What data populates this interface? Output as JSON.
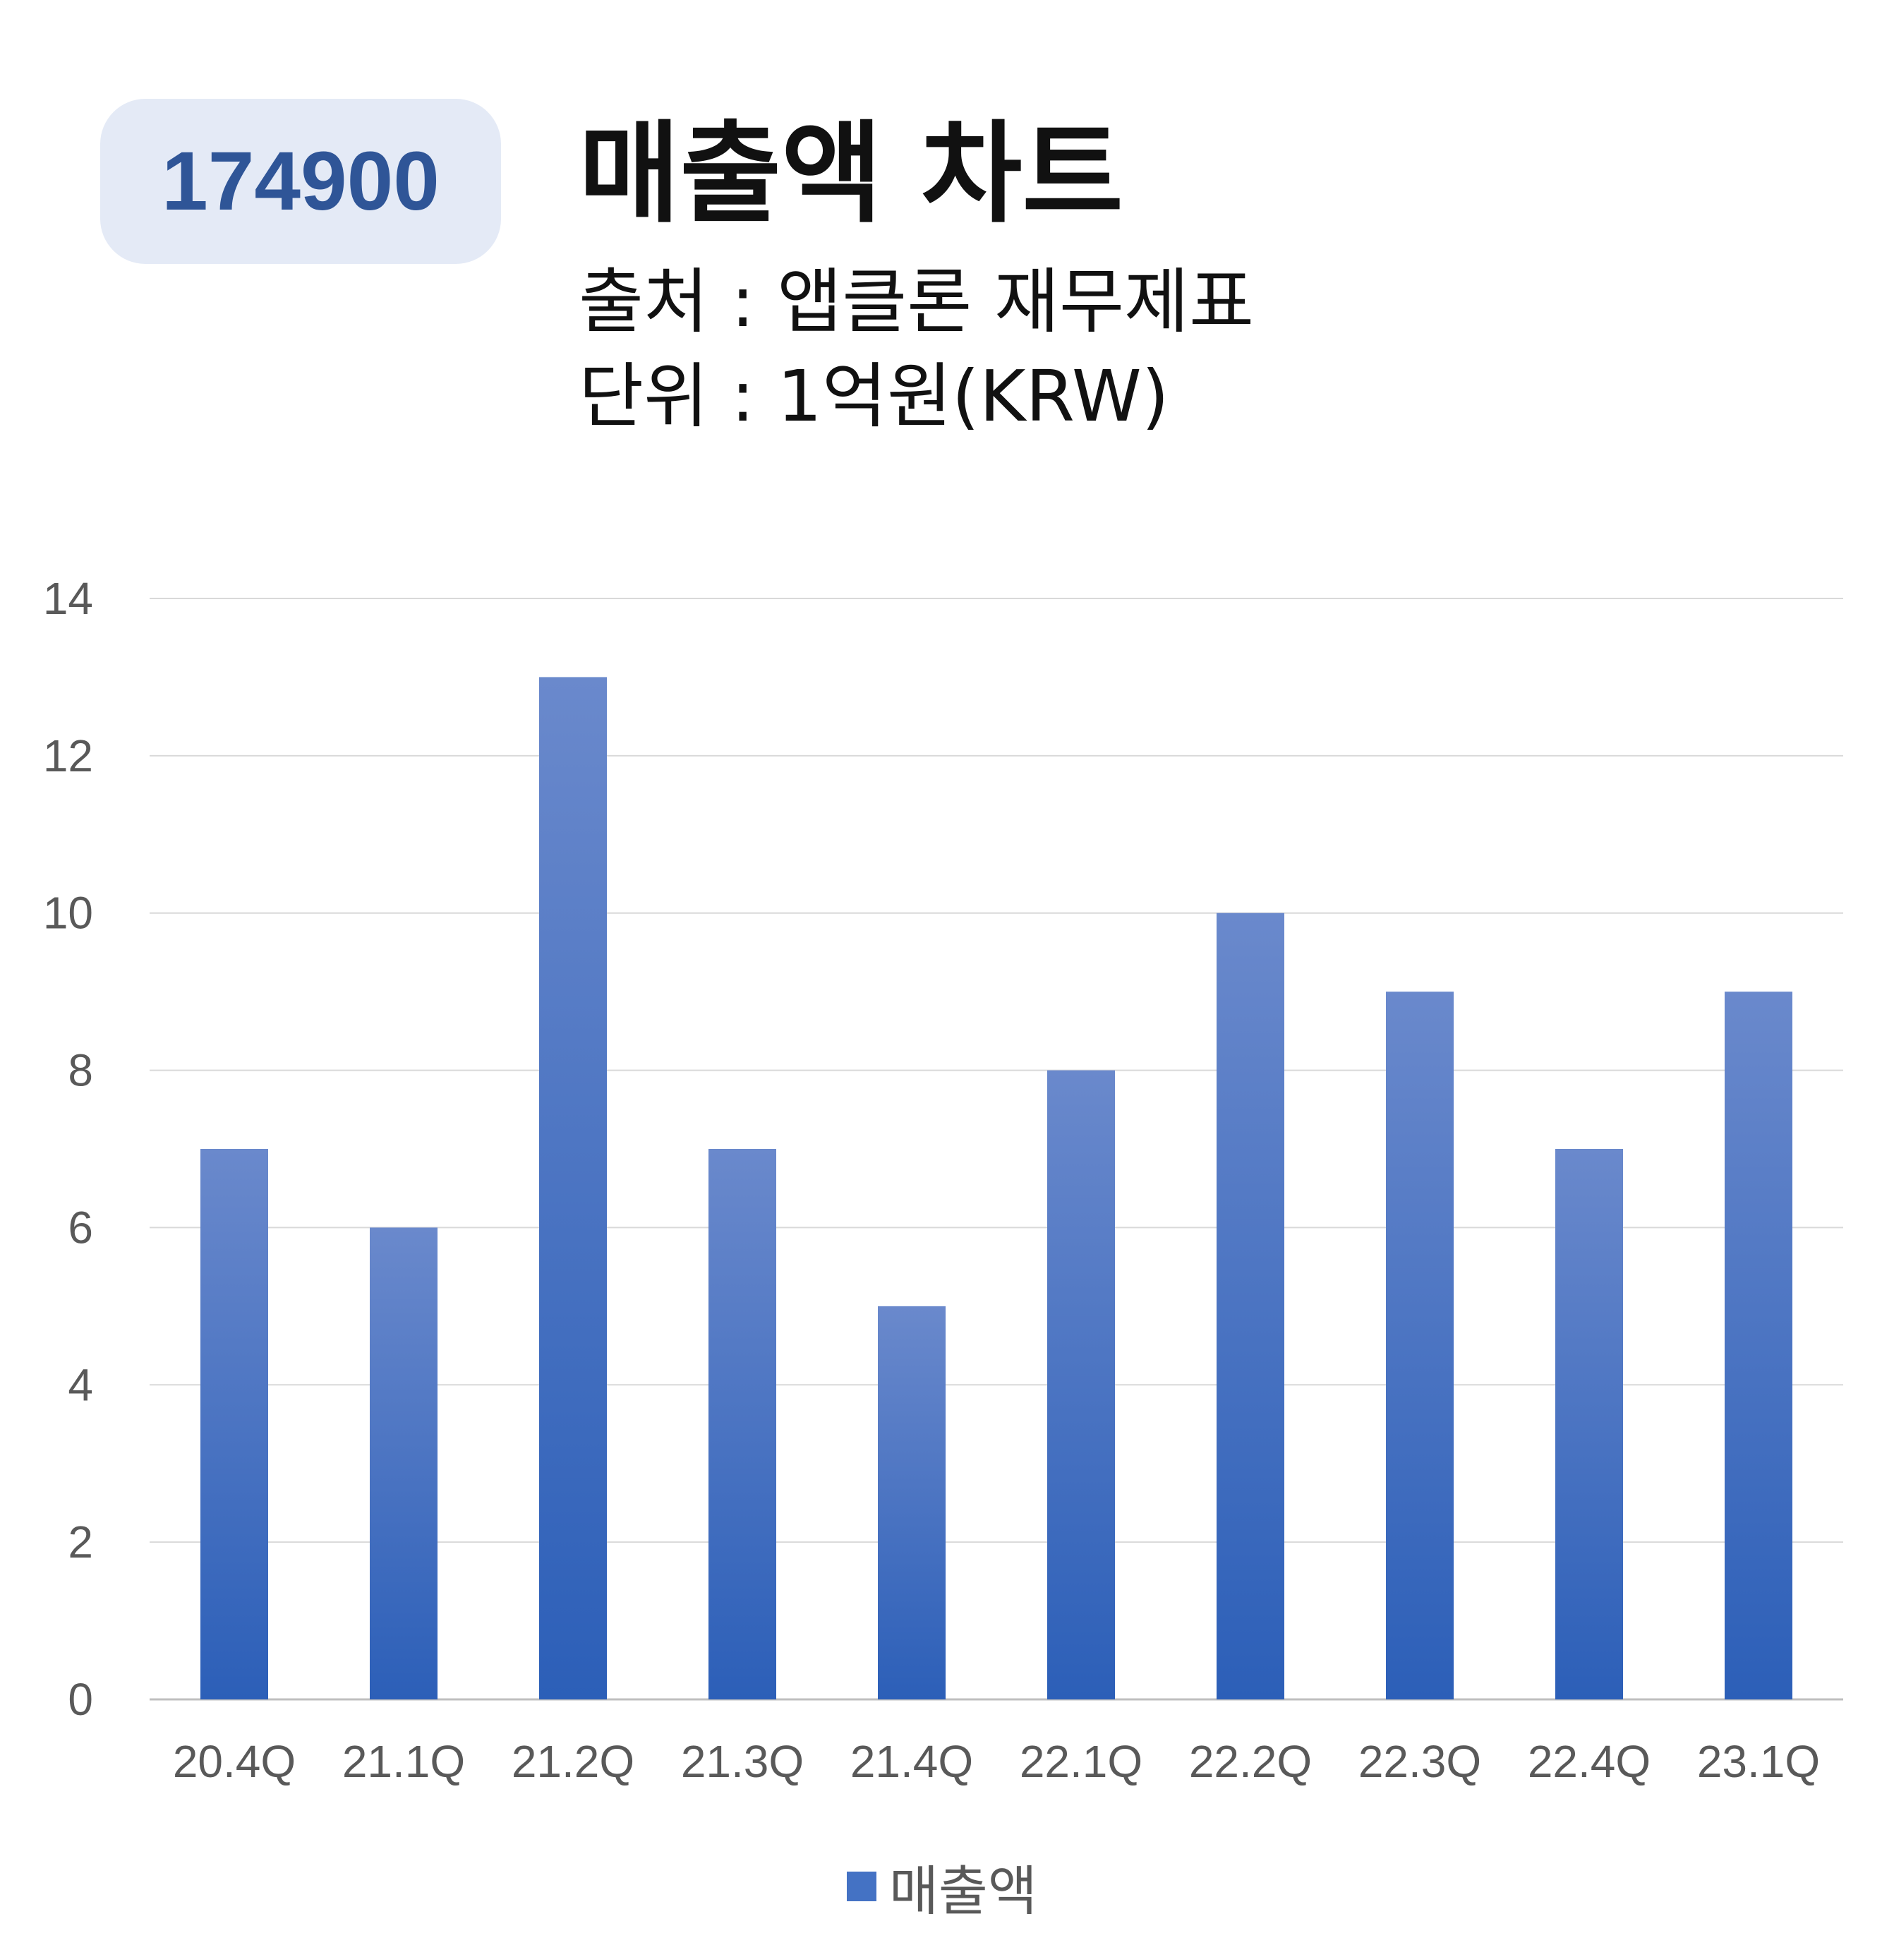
{
  "badge": {
    "code": "174900"
  },
  "header": {
    "title": "매출액 차트",
    "source": "출처 : 앱클론 재무제표",
    "unit": "단위 : 1억원(KRW)"
  },
  "colors": {
    "bar_top": "#6a89cc",
    "bar_bottom": "#2c5fb8",
    "grid": "#d9d9d9",
    "badge_bg": "#e4eaf6",
    "badge_text": "#2f5597"
  },
  "chart_data": {
    "type": "bar",
    "categories": [
      "20.4Q",
      "21.1Q",
      "21.2Q",
      "21.3Q",
      "21.4Q",
      "22.1Q",
      "22.2Q",
      "22.3Q",
      "22.4Q",
      "23.1Q"
    ],
    "series": [
      {
        "name": "매출액",
        "values": [
          7,
          6,
          13,
          7,
          5,
          8,
          10,
          9,
          7,
          9
        ]
      }
    ],
    "yticks": [
      0,
      2,
      4,
      6,
      8,
      10,
      12,
      14
    ],
    "ylim": [
      0,
      14
    ],
    "grid": true,
    "legend": "bottom-center"
  }
}
